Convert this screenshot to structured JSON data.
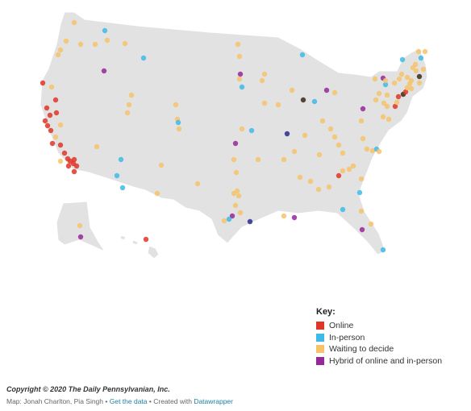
{
  "legend": {
    "title": "Key:",
    "items": [
      {
        "label": "Online",
        "color": "#e03527"
      },
      {
        "label": "In-person",
        "color": "#3dbbe8"
      },
      {
        "label": "Waiting to decide",
        "color": "#f6c36a"
      },
      {
        "label": "Hybrid of online and in-person",
        "color": "#952797"
      }
    ]
  },
  "footer": {
    "copyright": "Copyright © 2020 The Daily Pennsylvanian, Inc.",
    "credit_prefix": "Map: Jonah Charlton, Pia Singh",
    "sep1": " • ",
    "data_link": "Get the data",
    "sep2": " • Created with ",
    "tool_link": "Datawrapper"
  }
}
